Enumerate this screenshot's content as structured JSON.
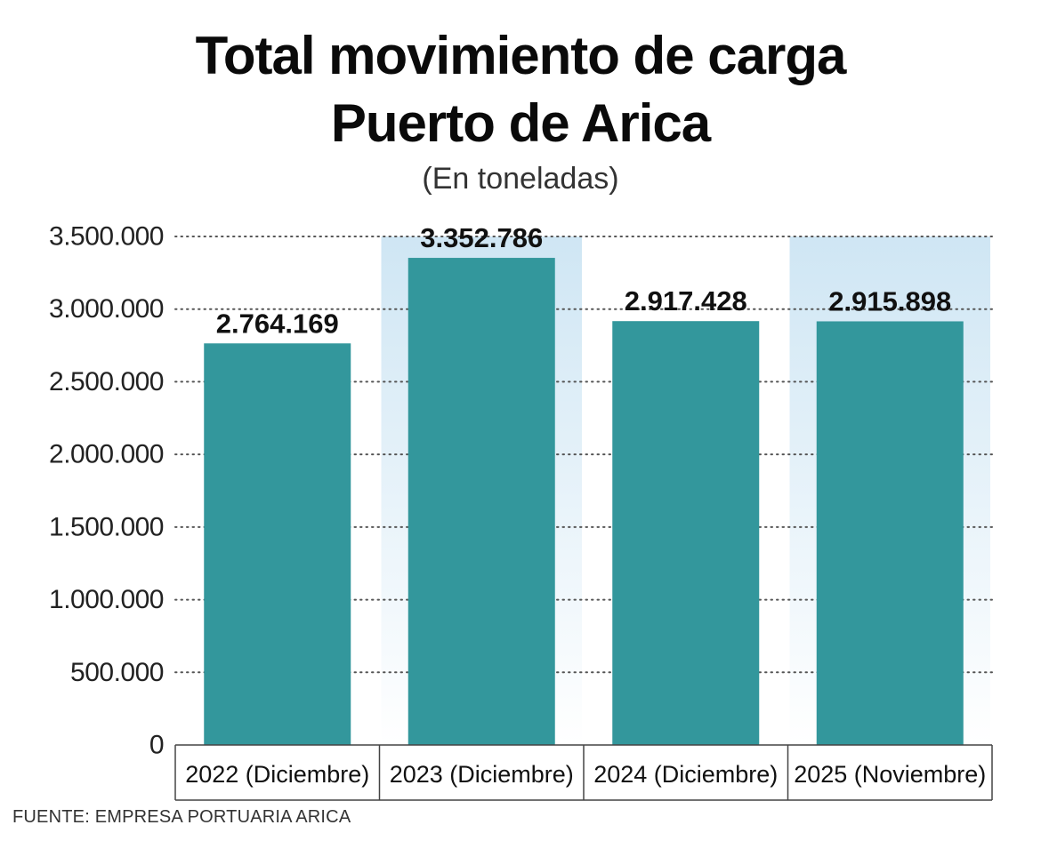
{
  "title_lines": [
    "Total movimiento de carga",
    "Puerto de Arica"
  ],
  "subtitle": "(En toneladas)",
  "source": "FUENTE: EMPRESA PORTUARIA ARICA",
  "colors": {
    "bar": "#33979c",
    "highlight_top": "#cfe6f4",
    "highlight_bottom": "#ffffff",
    "grid": "#555555",
    "axis": "#444444",
    "text": "#111111"
  },
  "chart_data": {
    "type": "bar",
    "title": "Total movimiento de carga Puerto de Arica",
    "subtitle": "(En toneladas)",
    "categories": [
      "2022 (Diciembre)",
      "2023 (Diciembre)",
      "2024 (Diciembre)",
      "2025 (Noviembre)"
    ],
    "values": [
      2764169,
      3352786,
      2917428,
      2915898
    ],
    "value_labels": [
      "2.764.169",
      "3.352.786",
      "2.917.428",
      "2.915.898"
    ],
    "highlighted_categories": [
      "2023 (Diciembre)",
      "2025 (Noviembre)"
    ],
    "ylim": [
      0,
      3500000
    ],
    "yticks": [
      0,
      500000,
      1000000,
      1500000,
      2000000,
      2500000,
      3000000,
      3500000
    ],
    "ytick_labels": [
      "0",
      "500.000",
      "1.000.000",
      "1.500.000",
      "2.000.000",
      "2.500.000",
      "3.000.000",
      "3.500.000"
    ],
    "grid": true,
    "grid_style": "dotted",
    "legend": false
  }
}
